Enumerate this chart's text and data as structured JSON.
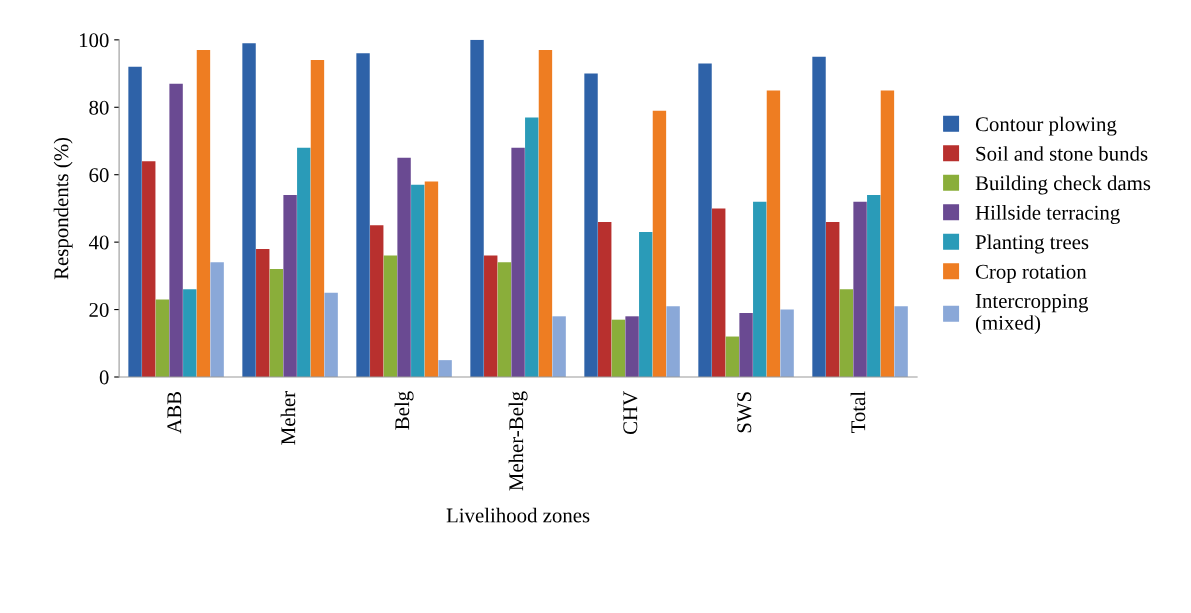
{
  "chart_data": {
    "type": "bar",
    "xlabel": "Livelihood zones",
    "ylabel": "Respondents (%)",
    "categories": [
      "ABB",
      "Meher",
      "Belg",
      "Meher-Belg",
      "CHV",
      "SWS",
      "Total"
    ],
    "series": [
      {
        "name": "Contour plowing",
        "color": "#2e62a8",
        "values": [
          92,
          99,
          96,
          100,
          90,
          93,
          95
        ]
      },
      {
        "name": "Soil and stone bunds",
        "color": "#b8302e",
        "values": [
          64,
          38,
          45,
          36,
          46,
          50,
          46
        ]
      },
      {
        "name": "Building check dams",
        "color": "#8aae3a",
        "values": [
          23,
          32,
          36,
          34,
          17,
          12,
          26
        ]
      },
      {
        "name": "Hillside terracing",
        "color": "#6a4a92",
        "values": [
          87,
          54,
          65,
          68,
          18,
          19,
          52
        ]
      },
      {
        "name": "Planting trees",
        "color": "#2a9bb8",
        "values": [
          26,
          68,
          57,
          77,
          43,
          52,
          54
        ]
      },
      {
        "name": "Crop rotation",
        "color": "#ee7d22",
        "values": [
          97,
          94,
          58,
          97,
          79,
          85,
          85
        ]
      },
      {
        "name": "Intercropping\n(mixed)",
        "color": "#8aa8d8",
        "values": [
          34,
          25,
          5,
          18,
          21,
          20,
          21
        ]
      }
    ],
    "ylim": [
      0,
      100
    ],
    "yticks": [
      0,
      20,
      40,
      60,
      80,
      100
    ],
    "grid": false,
    "legend": "right"
  }
}
